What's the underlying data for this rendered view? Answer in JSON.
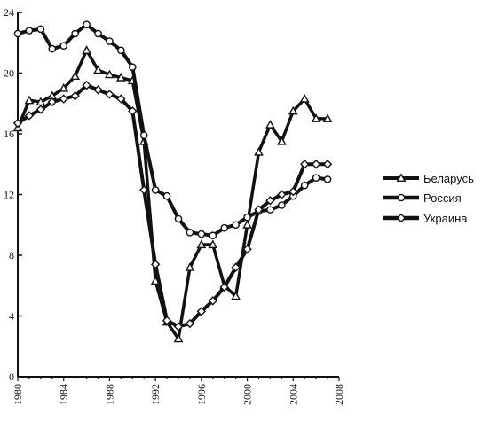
{
  "chart_data": {
    "type": "line",
    "title": "",
    "xlabel": "",
    "ylabel": "",
    "xlim": [
      1980,
      2008
    ],
    "ylim": [
      0,
      24
    ],
    "x_ticks": [
      "1980",
      "1984",
      "1988",
      "1992",
      "1996",
      "2000",
      "2004",
      "2008"
    ],
    "y_ticks": [
      "0",
      "4",
      "8",
      "12",
      "16",
      "20",
      "24"
    ],
    "grid": false,
    "legend_position": "right",
    "x": [
      1980,
      1981,
      1982,
      1983,
      1984,
      1985,
      1986,
      1987,
      1988,
      1989,
      1990,
      1991,
      1992,
      1993,
      1994,
      1995,
      1996,
      1997,
      1998,
      1999,
      2000,
      2001,
      2002,
      2003,
      2004,
      2005,
      2006,
      2007
    ],
    "series": [
      {
        "name": "Беларусь",
        "marker": "triangle",
        "color": "#111111",
        "values": [
          16.4,
          18.2,
          18.1,
          18.5,
          19.0,
          19.8,
          21.5,
          20.2,
          19.9,
          19.7,
          19.5,
          15.5,
          6.3,
          3.6,
          2.5,
          7.2,
          8.7,
          8.7,
          6.0,
          5.3,
          10.0,
          14.8,
          16.6,
          15.5,
          17.5,
          18.3,
          17.0,
          17.0
        ]
      },
      {
        "name": "Россия",
        "marker": "circle",
        "color": "#111111",
        "values": [
          22.6,
          22.8,
          22.9,
          21.6,
          21.8,
          22.6,
          23.2,
          22.6,
          22.1,
          21.5,
          20.4,
          15.9,
          12.3,
          11.9,
          10.4,
          9.5,
          9.4,
          9.3,
          9.8,
          10.0,
          10.5,
          10.9,
          11.0,
          11.3,
          11.9,
          12.6,
          13.1,
          13.0
        ]
      },
      {
        "name": "Украина",
        "marker": "diamond",
        "color": "#111111",
        "values": [
          16.7,
          17.2,
          17.6,
          18.1,
          18.3,
          18.5,
          19.2,
          18.9,
          18.6,
          18.3,
          17.5,
          12.3,
          7.4,
          3.7,
          3.3,
          3.5,
          4.3,
          5.0,
          5.9,
          7.2,
          8.4,
          11.0,
          11.6,
          12.0,
          12.2,
          14.0,
          14.0,
          14.0
        ]
      }
    ]
  }
}
